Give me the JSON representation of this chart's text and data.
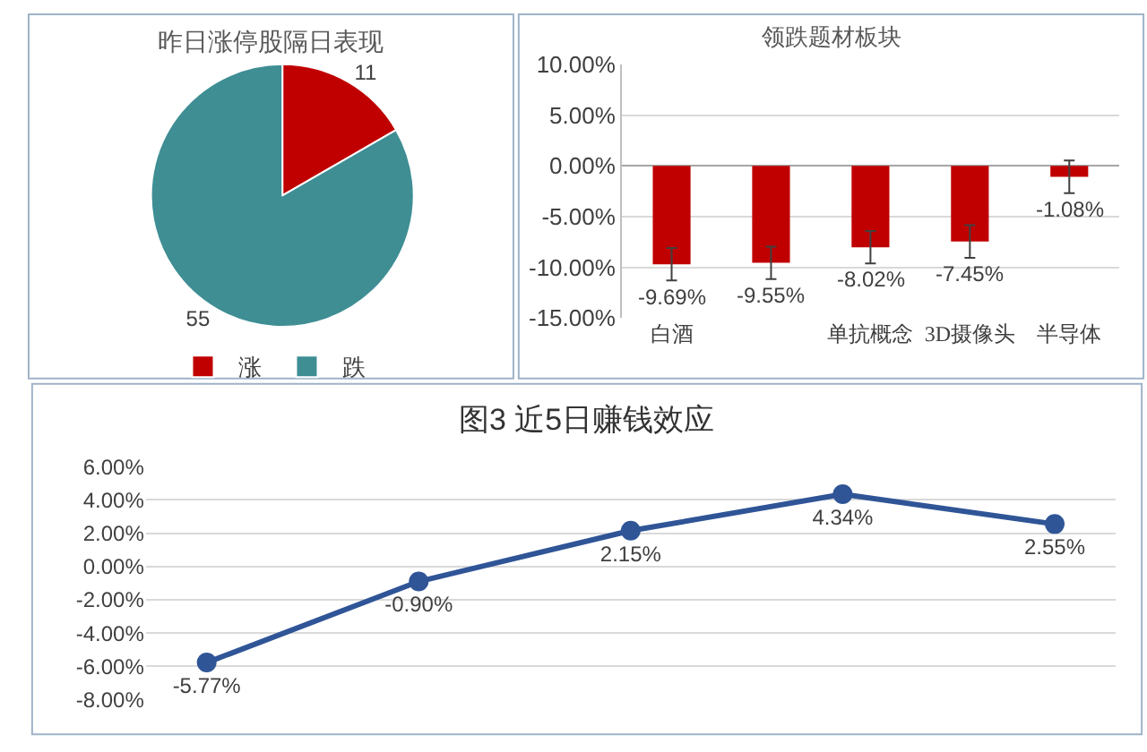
{
  "chart_data": [
    {
      "type": "pie",
      "title": "昨日涨停股隔日表现",
      "categories": [
        "涨",
        "跌"
      ],
      "values": [
        11,
        55
      ],
      "colors": [
        "#c00000",
        "#3e8e94"
      ],
      "data_labels": true,
      "legend": "bottom"
    },
    {
      "type": "bar",
      "title": "领跌题材板块",
      "categories": [
        "白酒",
        null,
        "单抗概念",
        "3D摄像头",
        "半导体"
      ],
      "values": [
        -9.69,
        -9.55,
        -8.02,
        -7.45,
        -1.08
      ],
      "color": "#c00000",
      "errors": [
        1.6,
        1.6,
        1.6,
        1.6,
        1.6
      ],
      "value_labels": [
        "-9.69%",
        "-9.55%",
        "-8.02%",
        "-7.45%",
        "-1.08%"
      ],
      "ylim": [
        -15,
        10
      ],
      "yticks": [
        {
          "value": 10,
          "label": "10.00%"
        },
        {
          "value": 5,
          "label": "5.00%"
        },
        {
          "value": 0,
          "label": "0.00%"
        },
        {
          "value": -5,
          "label": "-5.00%"
        },
        {
          "value": -10,
          "label": "-10.00%"
        },
        {
          "value": -15,
          "label": "-15.00%"
        }
      ],
      "grid": "y"
    },
    {
      "type": "line",
      "title": "图3 近5日赚钱效应",
      "categories": [
        null,
        null,
        null,
        null,
        null
      ],
      "values": [
        -5.77,
        -0.9,
        2.15,
        4.34,
        2.55
      ],
      "color": "#2f5597",
      "value_labels": [
        "-5.77%",
        "-0.90%",
        "2.15%",
        "4.34%",
        "2.55%"
      ],
      "ylim": [
        -8,
        6
      ],
      "yticks": [
        {
          "value": 6,
          "label": "6.00%"
        },
        {
          "value": 4,
          "label": "4.00%"
        },
        {
          "value": 2,
          "label": "2.00%"
        },
        {
          "value": 0,
          "label": "0.00%"
        },
        {
          "value": -2,
          "label": "-2.00%"
        },
        {
          "value": -4,
          "label": "-4.00%"
        },
        {
          "value": -6,
          "label": "-6.00%"
        },
        {
          "value": -8,
          "label": "-8.00%"
        }
      ],
      "grid": "y",
      "marker": "circle",
      "line_style": "solid"
    }
  ]
}
